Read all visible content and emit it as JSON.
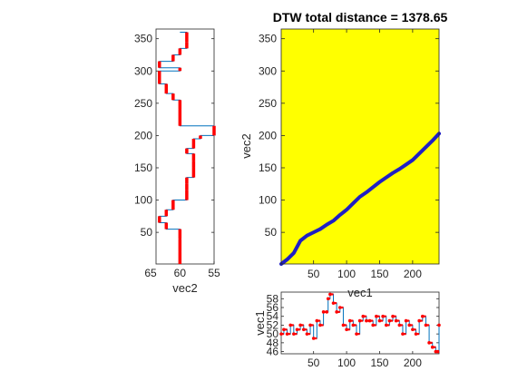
{
  "colors": {
    "series_red": "#ff0000",
    "series_line": "#0072bd",
    "path_blue": "#1f1fc4",
    "matrix_fill": "#ffff00",
    "axes": "#262626"
  },
  "chart_data": [
    {
      "id": "left",
      "type": "line",
      "orientation": "vertical",
      "xlabel": "vec2",
      "ylabel": "",
      "x_reversed": true,
      "xlim": [
        55,
        63.5
      ],
      "ylim": [
        1,
        365
      ],
      "xticks": [
        65,
        60,
        55
      ],
      "xtick_labels": [
        "65",
        "60",
        "55"
      ],
      "yticks": [
        50,
        100,
        150,
        200,
        250,
        300,
        350
      ],
      "ytick_labels": [
        "50",
        "100",
        "150",
        "200",
        "250",
        "300",
        "350"
      ],
      "series": [
        {
          "y": [
            1,
            20,
            40,
            55,
            65,
            75,
            85,
            100,
            115,
            125,
            135,
            150,
            160,
            172,
            180,
            195,
            200,
            215,
            240,
            255,
            265,
            280,
            300,
            305,
            315,
            325,
            335,
            345,
            360
          ],
          "x": [
            60,
            60,
            60,
            62,
            63,
            62,
            61,
            59,
            59,
            59,
            58,
            58,
            58,
            59,
            58,
            57,
            55,
            60,
            60,
            61,
            62,
            63,
            60,
            63,
            61,
            60,
            59,
            59,
            60
          ]
        }
      ]
    },
    {
      "id": "matrix",
      "type": "heatmap",
      "title": "DTW total distance = 1378.65",
      "xlabel": "vec1",
      "ylabel": "vec2",
      "xlim": [
        1,
        240
      ],
      "ylim": [
        1,
        365
      ],
      "xticks": [
        50,
        100,
        150,
        200
      ],
      "xtick_labels": [
        "50",
        "100",
        "150",
        "200"
      ],
      "yticks": [
        50,
        100,
        150,
        200,
        250,
        300,
        350
      ],
      "ytick_labels": [
        "50",
        "100",
        "150",
        "200",
        "250",
        "300",
        "350"
      ],
      "path": {
        "x": [
          1,
          10,
          20,
          30,
          40,
          50,
          60,
          70,
          80,
          90,
          100,
          110,
          120,
          130,
          140,
          150,
          160,
          170,
          180,
          190,
          200,
          210,
          220,
          230,
          240
        ],
        "y": [
          1,
          8,
          18,
          37,
          45,
          50,
          55,
          62,
          68,
          77,
          85,
          95,
          105,
          112,
          120,
          128,
          135,
          142,
          148,
          155,
          162,
          172,
          182,
          192,
          203
        ]
      }
    },
    {
      "id": "bottom",
      "type": "line",
      "xlabel": "",
      "ylabel": "vec1",
      "xlim": [
        1,
        240
      ],
      "ylim": [
        45.5,
        59.5
      ],
      "xticks": [
        50,
        100,
        150,
        200
      ],
      "xtick_labels": [
        "50",
        "100",
        "150",
        "200"
      ],
      "yticks": [
        46,
        48,
        50,
        52,
        54,
        56,
        58
      ],
      "ytick_labels": [
        "46",
        "48",
        "50",
        "52",
        "54",
        "56",
        "58"
      ],
      "series": [
        {
          "x": [
            1,
            5,
            10,
            15,
            20,
            25,
            30,
            35,
            40,
            45,
            50,
            55,
            60,
            65,
            70,
            72,
            75,
            80,
            85,
            90,
            95,
            100,
            105,
            110,
            115,
            120,
            125,
            130,
            135,
            140,
            145,
            150,
            155,
            160,
            165,
            170,
            175,
            180,
            185,
            190,
            195,
            200,
            205,
            210,
            215,
            220,
            225,
            230,
            235,
            238,
            240
          ],
          "y": [
            50,
            51,
            50,
            52,
            50,
            51,
            52,
            51,
            50,
            52,
            49,
            53,
            52,
            55,
            55,
            58,
            59,
            57,
            55,
            56,
            52,
            51,
            53,
            52,
            50,
            53,
            54,
            53,
            53,
            52,
            54,
            53,
            54,
            52,
            53,
            54,
            53,
            52,
            50,
            53,
            52,
            51,
            50,
            53,
            54,
            52,
            48,
            47,
            46,
            46,
            52
          ]
        }
      ]
    }
  ]
}
